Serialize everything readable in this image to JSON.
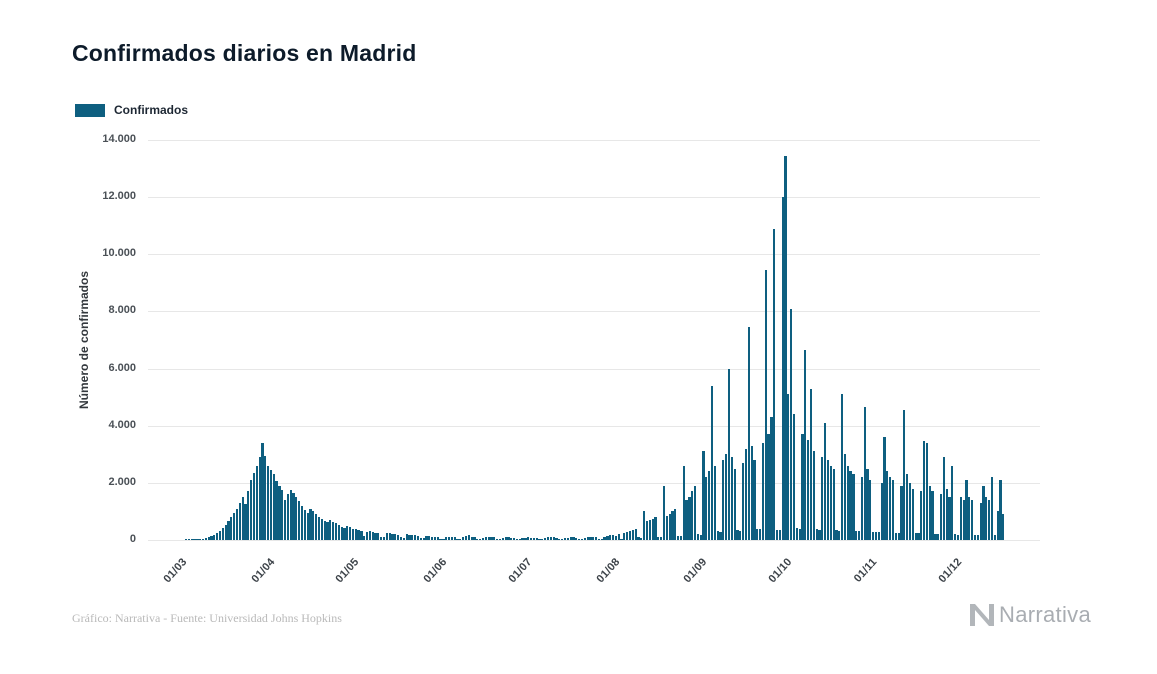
{
  "title": "Confirmados diarios en Madrid",
  "legend": {
    "label": "Confirmados",
    "color": "#0e5f80"
  },
  "footer": {
    "credit": "Gráfico: Narrativa - Fuente: Universidad Johns Hopkins",
    "brand": "Narrativa"
  },
  "chart_data": {
    "type": "bar",
    "title": "Confirmados diarios en Madrid",
    "xlabel": "",
    "ylabel": "Número de confirmados",
    "ylim": [
      0,
      14000
    ],
    "grid": true,
    "legend_position": "top-left",
    "series_name": "Confirmados",
    "bar_color": "#0e5f80",
    "y_ticks": [
      {
        "value": 0,
        "label": "0"
      },
      {
        "value": 2000,
        "label": "2.000"
      },
      {
        "value": 4000,
        "label": "4.000"
      },
      {
        "value": 6000,
        "label": "6.000"
      },
      {
        "value": 8000,
        "label": "8.000"
      },
      {
        "value": 10000,
        "label": "10.000"
      },
      {
        "value": 12000,
        "label": "12.000"
      },
      {
        "value": 14000,
        "label": "14.000"
      }
    ],
    "x_ticks": [
      {
        "label": "01/03",
        "index": 0
      },
      {
        "label": "01/04",
        "index": 31
      },
      {
        "label": "01/05",
        "index": 61
      },
      {
        "label": "01/06",
        "index": 92
      },
      {
        "label": "01/07",
        "index": 122
      },
      {
        "label": "01/08",
        "index": 153
      },
      {
        "label": "01/09",
        "index": 184
      },
      {
        "label": "01/10",
        "index": 214
      },
      {
        "label": "01/11",
        "index": 244
      },
      {
        "label": "01/12",
        "index": 274
      }
    ],
    "values": [
      2,
      5,
      8,
      12,
      18,
      25,
      40,
      60,
      90,
      130,
      180,
      240,
      320,
      420,
      520,
      650,
      800,
      950,
      1100,
      1300,
      1500,
      1250,
      1700,
      2100,
      2350,
      2600,
      2900,
      3400,
      2950,
      2600,
      2450,
      2300,
      2050,
      1900,
      1750,
      1400,
      1600,
      1750,
      1650,
      1500,
      1350,
      1200,
      1050,
      950,
      1100,
      1000,
      900,
      820,
      750,
      680,
      620,
      700,
      640,
      580,
      520,
      470,
      430,
      480,
      440,
      400,
      370,
      340,
      310,
      150,
      290,
      320,
      280,
      250,
      230,
      120,
      100,
      260,
      240,
      220,
      200,
      180,
      90,
      80,
      210,
      190,
      170,
      160,
      150,
      70,
      60,
      140,
      130,
      120,
      110,
      100,
      50,
      45,
      120,
      110,
      100,
      95,
      50,
      40,
      90,
      140,
      160,
      120,
      100,
      45,
      40,
      85,
      95,
      110,
      100,
      90,
      40,
      35,
      80,
      90,
      100,
      85,
      75,
      35,
      30,
      70,
      80,
      90,
      85,
      75,
      70,
      30,
      25,
      65,
      90,
      100,
      95,
      85,
      30,
      25,
      75,
      85,
      95,
      90,
      80,
      28,
      22,
      70,
      90,
      110,
      120,
      100,
      30,
      25,
      95,
      130,
      160,
      180,
      150,
      200,
      45,
      240,
      280,
      320,
      360,
      400,
      90,
      80,
      1000,
      650,
      700,
      750,
      800,
      120,
      110,
      1900,
      850,
      900,
      1000,
      1100,
      150,
      140,
      2600,
      1400,
      1500,
      1700,
      1900,
      200,
      180,
      3100,
      2200,
      2400,
      5400,
      2600,
      300,
      280,
      2800,
      3000,
      6000,
      2900,
      2500,
      350,
      320,
      2700,
      3200,
      7450,
      3300,
      2800,
      400,
      380,
      3400,
      9450,
      3700,
      4300,
      10900,
      360,
      340,
      12000,
      13450,
      5100,
      8100,
      4400,
      420,
      400,
      3700,
      6650,
      3500,
      5300,
      3100,
      380,
      360,
      2900,
      4100,
      2800,
      2600,
      2500,
      340,
      320,
      5100,
      3000,
      2600,
      2400,
      2300,
      310,
      300,
      2200,
      4650,
      2500,
      2100,
      290,
      280,
      270,
      2000,
      3600,
      2400,
      2200,
      2100,
      260,
      250,
      1900,
      4550,
      2300,
      2000,
      1800,
      240,
      230,
      1700,
      3450,
      3400,
      1900,
      1700,
      220,
      210,
      1600,
      2900,
      1800,
      1500,
      2600,
      200,
      190,
      1500,
      1400,
      2100,
      1500,
      1400,
      180,
      170,
      1300,
      1900,
      1500,
      1400,
      2200,
      160,
      1000,
      2100,
      900
    ]
  }
}
